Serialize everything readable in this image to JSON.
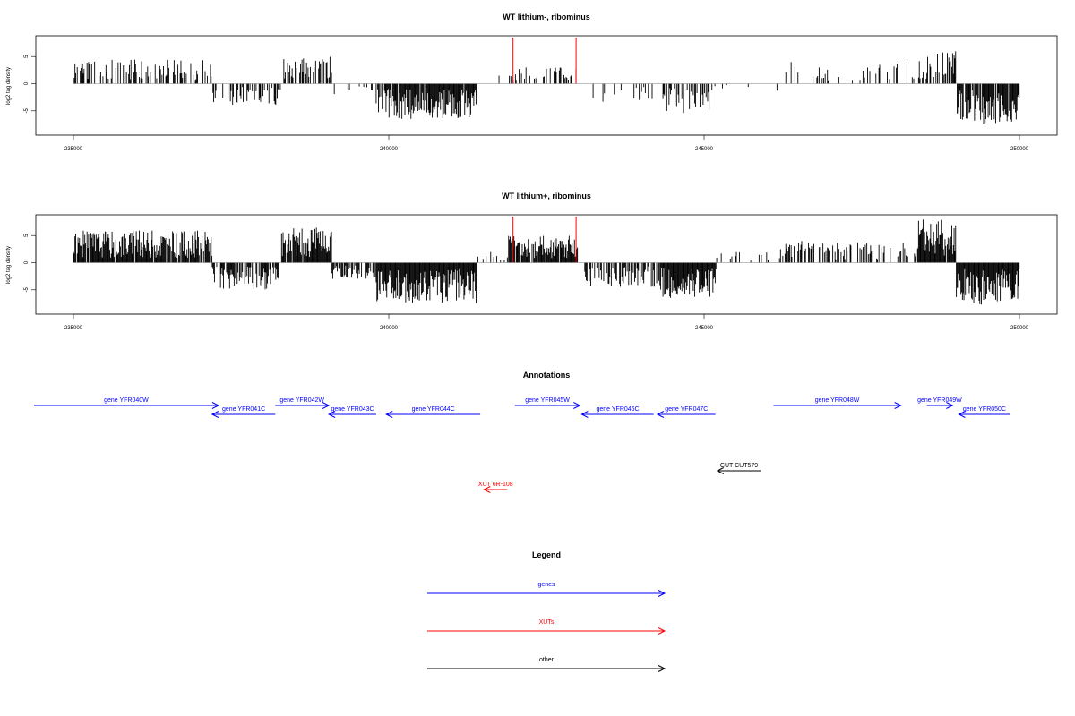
{
  "colors": {
    "gene": "#0000ff",
    "xut": "#ff0000",
    "other": "#000000",
    "bars": "#000000",
    "highlight": "#ff0000"
  },
  "chart_data": [
    {
      "type": "bar",
      "title": "WT lithium-, ribominus",
      "ylabel": "log2 tag density",
      "xlim": [
        235000,
        250000
      ],
      "ylim": [
        -8.5,
        8.5
      ],
      "x_ticks": [
        235000,
        240000,
        245000,
        250000
      ],
      "x_tick_labels": [
        "235000",
        "240000",
        "245000",
        "250000"
      ],
      "y_ticks": [
        -5,
        0,
        5
      ],
      "y_tick_labels": [
        "-5",
        "0",
        "5"
      ],
      "grid": false,
      "segments": [
        {
          "start": 235000,
          "end": 237200,
          "strand": "+",
          "peak": 4.5,
          "density": 0.45,
          "seed": 11
        },
        {
          "start": 237200,
          "end": 238300,
          "strand": "-",
          "peak": 4.0,
          "density": 0.4,
          "seed": 12
        },
        {
          "start": 238300,
          "end": 239100,
          "strand": "+",
          "peak": 5.0,
          "density": 0.5,
          "seed": 13
        },
        {
          "start": 239100,
          "end": 239800,
          "strand": "-",
          "peak": 2.0,
          "density": 0.1,
          "seed": 14
        },
        {
          "start": 239800,
          "end": 241400,
          "strand": "-",
          "peak": 6.5,
          "density": 0.95,
          "seed": 15
        },
        {
          "start": 241400,
          "end": 241900,
          "strand": "+",
          "peak": 1.5,
          "density": 0.05,
          "seed": 16
        },
        {
          "start": 241900,
          "end": 243000,
          "strand": "+",
          "peak": 3.0,
          "density": 0.3,
          "seed": 17
        },
        {
          "start": 243000,
          "end": 244300,
          "strand": "-",
          "peak": 3.5,
          "density": 0.12,
          "seed": 18
        },
        {
          "start": 244300,
          "end": 245100,
          "strand": "-",
          "peak": 5.5,
          "density": 0.5,
          "seed": 19
        },
        {
          "start": 245100,
          "end": 246200,
          "strand": "-",
          "peak": 1.5,
          "density": 0.05,
          "seed": 20
        },
        {
          "start": 246200,
          "end": 248400,
          "strand": "+",
          "peak": 4.0,
          "density": 0.18,
          "seed": 21
        },
        {
          "start": 248400,
          "end": 249000,
          "strand": "+",
          "peak": 6.0,
          "density": 0.55,
          "seed": 22
        },
        {
          "start": 249000,
          "end": 250000,
          "strand": "-",
          "peak": 7.5,
          "density": 0.85,
          "seed": 23
        }
      ],
      "highlights": [
        {
          "x": 241970,
          "y": 8.5
        },
        {
          "x": 242970,
          "y": 8.5
        }
      ]
    },
    {
      "type": "bar",
      "title": "WT lithium+, ribominus",
      "ylabel": "log2 tag density",
      "xlim": [
        235000,
        250000
      ],
      "ylim": [
        -8.5,
        8.5
      ],
      "x_ticks": [
        235000,
        240000,
        245000,
        250000
      ],
      "x_tick_labels": [
        "235000",
        "240000",
        "245000",
        "250000"
      ],
      "y_ticks": [
        -5,
        0,
        5
      ],
      "y_tick_labels": [
        "-5",
        "0",
        "5"
      ],
      "grid": false,
      "segments": [
        {
          "start": 235000,
          "end": 237200,
          "strand": "+",
          "peak": 6.0,
          "density": 0.95,
          "seed": 31
        },
        {
          "start": 237200,
          "end": 238300,
          "strand": "-",
          "peak": 5.0,
          "density": 0.65,
          "seed": 32
        },
        {
          "start": 238300,
          "end": 239100,
          "strand": "+",
          "peak": 6.5,
          "density": 0.95,
          "seed": 33
        },
        {
          "start": 239100,
          "end": 239800,
          "strand": "-",
          "peak": 3.0,
          "density": 0.5,
          "seed": 34
        },
        {
          "start": 239800,
          "end": 241400,
          "strand": "-",
          "peak": 7.5,
          "density": 1.0,
          "seed": 35
        },
        {
          "start": 241400,
          "end": 241900,
          "strand": "+",
          "peak": 2.0,
          "density": 0.25,
          "seed": 36
        },
        {
          "start": 241900,
          "end": 243000,
          "strand": "+",
          "peak": 5.0,
          "density": 0.9,
          "seed": 37
        },
        {
          "start": 243000,
          "end": 244300,
          "strand": "-",
          "peak": 4.5,
          "density": 0.45,
          "seed": 38
        },
        {
          "start": 244300,
          "end": 245200,
          "strand": "-",
          "peak": 6.5,
          "density": 1.0,
          "seed": 39
        },
        {
          "start": 245200,
          "end": 246200,
          "strand": "+",
          "peak": 2.0,
          "density": 0.15,
          "seed": 40
        },
        {
          "start": 246200,
          "end": 248400,
          "strand": "+",
          "peak": 4.0,
          "density": 0.45,
          "seed": 41
        },
        {
          "start": 248400,
          "end": 249000,
          "strand": "+",
          "peak": 8.0,
          "density": 0.95,
          "seed": 42
        },
        {
          "start": 249000,
          "end": 250000,
          "strand": "-",
          "peak": 8.0,
          "density": 1.0,
          "seed": 43
        }
      ],
      "highlights": [
        {
          "x": 241970,
          "y": 8.5
        },
        {
          "x": 242970,
          "y": 8.5
        }
      ]
    }
  ],
  "annotations": {
    "title": "Annotations",
    "features": [
      {
        "label": "gene YFR040W",
        "class": "gene",
        "strand": "+",
        "start": 234200,
        "end": 237300,
        "row": 0
      },
      {
        "label": "gene YFR041C",
        "class": "gene",
        "strand": "-",
        "start": 237200,
        "end": 238200,
        "row": 1
      },
      {
        "label": "gene YFR042W",
        "class": "gene",
        "strand": "+",
        "start": 238200,
        "end": 239050,
        "row": 0
      },
      {
        "label": "gene YFR043C",
        "class": "gene",
        "strand": "-",
        "start": 239050,
        "end": 239800,
        "row": 1
      },
      {
        "label": "gene YFR044C",
        "class": "gene",
        "strand": "-",
        "start": 239960,
        "end": 241450,
        "row": 1
      },
      {
        "label": "gene YFR045W",
        "class": "gene",
        "strand": "+",
        "start": 242000,
        "end": 243030,
        "row": 0
      },
      {
        "label": "gene YFR046C",
        "class": "gene",
        "strand": "-",
        "start": 243060,
        "end": 244200,
        "row": 1
      },
      {
        "label": "gene YFR047C",
        "class": "gene",
        "strand": "-",
        "start": 244260,
        "end": 245180,
        "row": 1
      },
      {
        "label": "gene YFR048W",
        "class": "gene",
        "strand": "+",
        "start": 246100,
        "end": 248120,
        "row": 0
      },
      {
        "label": "gene YFR049W",
        "class": "gene",
        "strand": "+",
        "start": 248530,
        "end": 248940,
        "row": 0
      },
      {
        "label": "gene YFR050C",
        "class": "gene",
        "strand": "-",
        "start": 249040,
        "end": 249850,
        "row": 1
      },
      {
        "label": "CUT CUT579",
        "class": "other",
        "strand": "-",
        "start": 245210,
        "end": 245900,
        "row": 2
      },
      {
        "label": "XUT 6R-108",
        "class": "xut",
        "strand": "-",
        "start": 241510,
        "end": 241880,
        "row": 3
      }
    ]
  },
  "legend": {
    "title": "Legend",
    "items": [
      {
        "label": "genes",
        "class": "gene"
      },
      {
        "label": "XUTs",
        "class": "xut"
      },
      {
        "label": "other",
        "class": "other"
      }
    ]
  }
}
